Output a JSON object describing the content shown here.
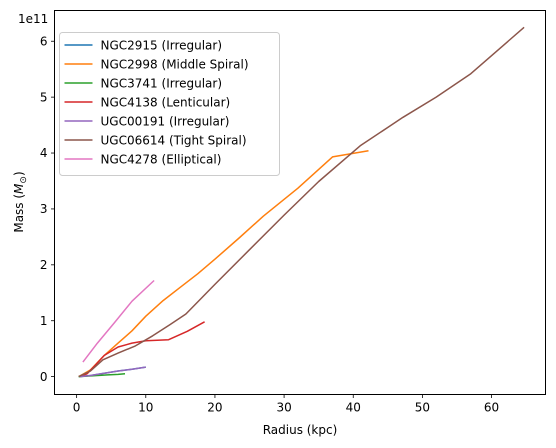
{
  "chart_data": {
    "type": "line",
    "title": "",
    "xlabel": "Radius (kpc)",
    "ylabel": "Mass ($M_{\\odot}$)",
    "ylabel_main": "Mass (",
    "ylabel_sym": "M",
    "ylabel_sub": "⊙",
    "ylabel_close": ")",
    "offset_text": "1e11",
    "xlim": [
      -3.2,
      67.8
    ],
    "ylim": [
      -0.32,
      6.55
    ],
    "xticks": [
      0,
      10,
      20,
      30,
      40,
      50,
      60
    ],
    "yticks": [
      0,
      1,
      2,
      3,
      4,
      5,
      6
    ],
    "legend_position": "top-left",
    "grid": false,
    "y_unit_multiplier": 100000000000.0,
    "series": [
      {
        "name": "NGC2915 (Irregular)",
        "color": "#1f77b4",
        "x": [
          0.3,
          2,
          4,
          6,
          8,
          10
        ],
        "y": [
          0.0,
          0.02,
          0.06,
          0.1,
          0.13,
          0.17
        ]
      },
      {
        "name": "NGC2998 (Middle Spiral)",
        "color": "#ff7f0e",
        "x": [
          0.3,
          2,
          4,
          6,
          8,
          10,
          12.5,
          15,
          17.5,
          20,
          23.5,
          27,
          32,
          37,
          42.2
        ],
        "y": [
          0.0,
          0.12,
          0.38,
          0.6,
          0.82,
          1.08,
          1.36,
          1.6,
          1.84,
          2.1,
          2.48,
          2.87,
          3.37,
          3.93,
          4.04
        ]
      },
      {
        "name": "NGC3741 (Irregular)",
        "color": "#2ca02c",
        "x": [
          0.3,
          1.5,
          3,
          4.5,
          6,
          7
        ],
        "y": [
          0.0,
          0.01,
          0.02,
          0.03,
          0.04,
          0.05
        ]
      },
      {
        "name": "NGC4138 (Lenticular)",
        "color": "#d62728",
        "x": [
          0.5,
          1.5,
          2.5,
          4,
          6,
          8,
          10,
          13.3,
          16,
          18.5
        ],
        "y": [
          0.0,
          0.05,
          0.18,
          0.38,
          0.53,
          0.6,
          0.64,
          0.66,
          0.81,
          0.98
        ]
      },
      {
        "name": "UGC00191 (Irregular)",
        "color": "#9467bd",
        "x": [
          0.5,
          2,
          4,
          6,
          8,
          10
        ],
        "y": [
          0.0,
          0.02,
          0.06,
          0.1,
          0.13,
          0.17
        ]
      },
      {
        "name": "UGC06614 (Tight Spiral)",
        "color": "#8c564b",
        "x": [
          0.3,
          2,
          3.8,
          6,
          8.5,
          11,
          13.5,
          15.8,
          20,
          25,
          30,
          35,
          41,
          47.2,
          52,
          57,
          64.7
        ],
        "y": [
          0.0,
          0.1,
          0.3,
          0.42,
          0.55,
          0.73,
          0.93,
          1.12,
          1.65,
          2.27,
          2.89,
          3.49,
          4.13,
          4.64,
          5.0,
          5.42,
          6.25
        ]
      },
      {
        "name": "NGC4278 (Elliptical)",
        "color": "#e377c2",
        "x": [
          0.9,
          3,
          5.5,
          8,
          11.2
        ],
        "y": [
          0.26,
          0.6,
          0.97,
          1.35,
          1.72
        ]
      }
    ]
  }
}
